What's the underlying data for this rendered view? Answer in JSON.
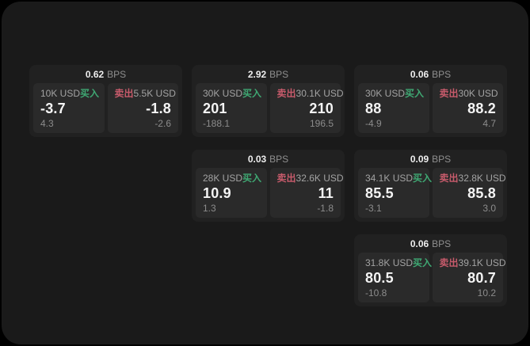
{
  "page": {
    "outer_bg": "#000000",
    "panel_bg": "#1a1a1a"
  },
  "labels": {
    "bps": "BPS",
    "buy": "买入",
    "sell": "卖出"
  },
  "colors": {
    "buy": "#3fa873",
    "sell": "#c75b6b",
    "card_bg": "#212121",
    "pane_bg": "#2a2a2a",
    "primary_text": "#f4f4f4",
    "secondary_text": "#a3a3a3"
  },
  "cards": [
    {
      "col": 1,
      "row": 1,
      "bps": "0.62",
      "buy": {
        "amount": "10K USD",
        "price": "-3.7",
        "delta": "4.3"
      },
      "sell": {
        "amount": "5.5K USD",
        "price": "-1.8",
        "delta": "-2.6"
      }
    },
    {
      "col": 2,
      "row": 1,
      "bps": "2.92",
      "buy": {
        "amount": "30K USD",
        "price": "201",
        "delta": "-188.1"
      },
      "sell": {
        "amount": "30.1K USD",
        "price": "210",
        "delta": "196.5"
      }
    },
    {
      "col": 3,
      "row": 1,
      "bps": "0.06",
      "buy": {
        "amount": "30K USD",
        "price": "88",
        "delta": "-4.9"
      },
      "sell": {
        "amount": "30K USD",
        "price": "88.2",
        "delta": "4.7"
      }
    },
    {
      "col": 2,
      "row": 2,
      "bps": "0.03",
      "buy": {
        "amount": "28K USD",
        "price": "10.9",
        "delta": "1.3"
      },
      "sell": {
        "amount": "32.6K USD",
        "price": "11",
        "delta": "-1.8"
      }
    },
    {
      "col": 3,
      "row": 2,
      "bps": "0.09",
      "buy": {
        "amount": "34.1K USD",
        "price": "85.5",
        "delta": "-3.1"
      },
      "sell": {
        "amount": "32.8K USD",
        "price": "85.8",
        "delta": "3.0"
      }
    },
    {
      "col": 3,
      "row": 3,
      "bps": "0.06",
      "buy": {
        "amount": "31.8K USD",
        "price": "80.5",
        "delta": "-10.8"
      },
      "sell": {
        "amount": "39.1K USD",
        "price": "80.7",
        "delta": "10.2"
      }
    }
  ]
}
